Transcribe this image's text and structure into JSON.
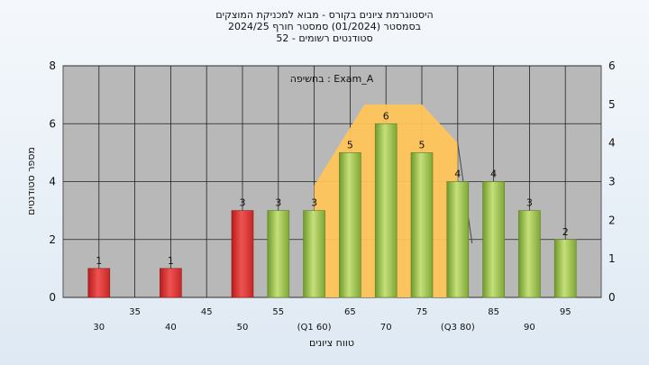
{
  "chart_data": {
    "type": "bar",
    "title_lines": [
      "היסטוגרמת ציונים בקורס - מבוא למכניקת המוצקים",
      "בסמסטר  (01/2024)  סמסטר חורף  2024/25",
      "סטודנטים רשומים - 52"
    ],
    "annotation": "בחשיפה : Exam_A",
    "ylabel": "מספר סטודנטים",
    "xlabel": "טווח ציונים",
    "ylim": [
      0,
      8
    ],
    "y2lim": [
      0,
      6
    ],
    "yticks": [
      "0",
      "2",
      "4",
      "6",
      "8"
    ],
    "y2ticks": [
      "0",
      "1",
      "2",
      "3",
      "4",
      "5",
      "6"
    ],
    "grid": true,
    "bins": [
      {
        "x": 30,
        "value": 1,
        "color": "red",
        "label": "1"
      },
      {
        "x": 40,
        "value": 1,
        "color": "red",
        "label": "1"
      },
      {
        "x": 50,
        "value": 3,
        "color": "red",
        "label": "3"
      },
      {
        "x": 55,
        "value": 3,
        "color": "green",
        "label": "3"
      },
      {
        "x": 60,
        "value": 3,
        "color": "green",
        "label": "3"
      },
      {
        "x": 65,
        "value": 5,
        "color": "green",
        "label": "5"
      },
      {
        "x": 70,
        "value": 6,
        "color": "green",
        "label": "6"
      },
      {
        "x": 75,
        "value": 5,
        "color": "green",
        "label": "5"
      },
      {
        "x": 80,
        "value": 4,
        "color": "green",
        "label": "4"
      },
      {
        "x": 85,
        "value": 4,
        "color": "green",
        "label": "4"
      },
      {
        "x": 90,
        "value": 3,
        "color": "green",
        "label": "3"
      },
      {
        "x": 95,
        "value": 2,
        "color": "green",
        "label": "2"
      }
    ],
    "xticks_upper": [
      "35",
      "45",
      "55",
      "65",
      "75",
      "85",
      "95"
    ],
    "xticks_lower": [
      "30",
      "40",
      "50",
      "(Q1 60)",
      "70",
      "(Q3 80)",
      "90"
    ],
    "quartile_band": {
      "from": 60,
      "to": 80,
      "color": "#ffc45a"
    },
    "colors": {
      "red": "#e53935",
      "green": "#9bc24a",
      "band": "#ffc45a",
      "plot_bg": "#b8b8b8"
    }
  }
}
